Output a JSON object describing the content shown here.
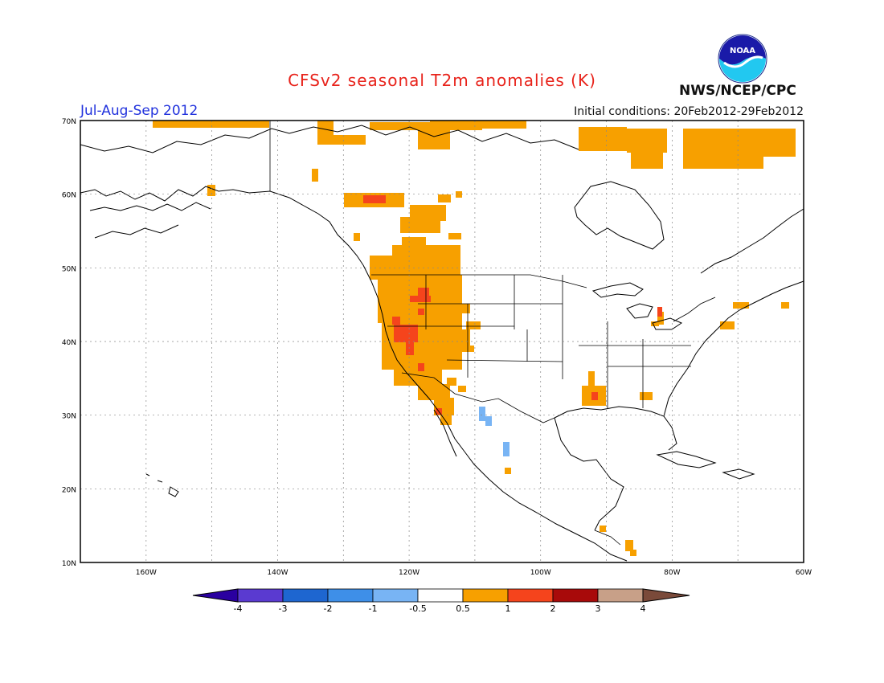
{
  "header": {
    "title": "CFSv2 seasonal T2m anomalies (K)",
    "period": "Jul-Aug-Sep 2012",
    "initial_conditions": "Initial conditions: 20Feb2012-29Feb2012",
    "agency": "NWS/NCEP/CPC",
    "logo_text": "NOAA"
  },
  "map": {
    "projection": "lat-lon",
    "lon_range": [
      -170,
      -60
    ],
    "lat_range": [
      10,
      70
    ],
    "lat_tick_labels": [
      "70N",
      "60N",
      "50N",
      "40N",
      "30N",
      "20N",
      "10N"
    ],
    "lon_tick_labels": [
      "160W",
      "140W",
      "120W",
      "100W",
      "80W",
      "60W"
    ],
    "grid": "dotted"
  },
  "legend": {
    "labels": [
      "-4",
      "-3",
      "-2",
      "-1",
      "-0.5",
      "0.5",
      "1",
      "2",
      "3",
      "4"
    ],
    "colors": [
      "#2a00a0",
      "#5a3ad0",
      "#1e66d0",
      "#3e8fe8",
      "#78b4f4",
      "#ffffff",
      "#f7a000",
      "#f5441c",
      "#a80a0a",
      "#c8a088",
      "#7a4a3a"
    ]
  },
  "colors": {
    "warm1": "#f7a000",
    "warm2": "#f5441c",
    "cool1": "#78b4f4",
    "title": "#e8221a",
    "period": "#2233dd"
  }
}
